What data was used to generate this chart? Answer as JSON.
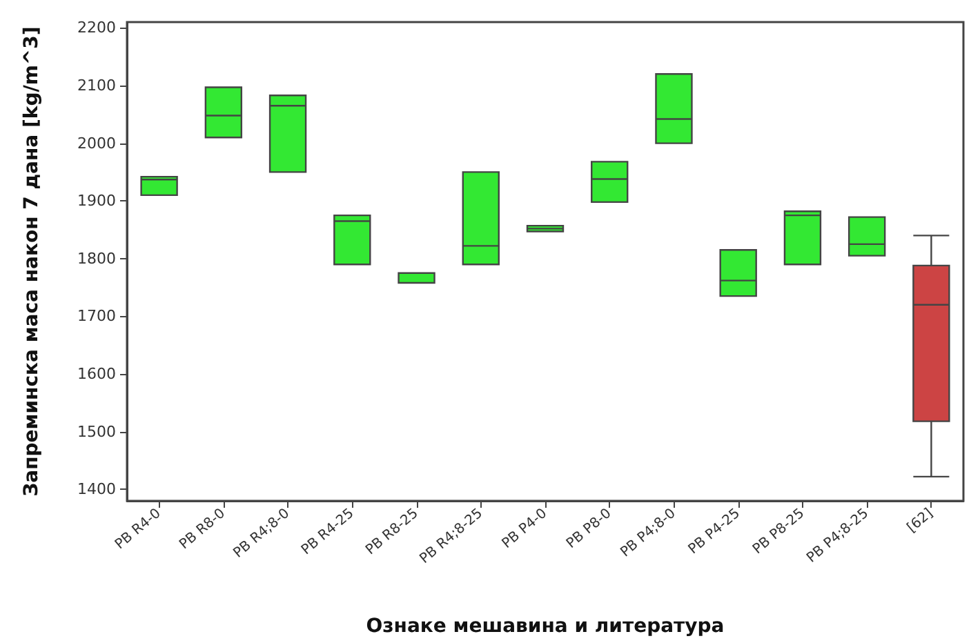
{
  "chart_data": {
    "type": "box",
    "xlabel": "Ознаке мешавина и литература",
    "ylabel": "Запреминска маса након 7 дана [kg/m^3]",
    "categories": [
      "PB R4-0",
      "PB R8-0",
      "PB R4;8-0",
      "PB R4-25",
      "PB R8-25",
      "PB R4;8-25",
      "PB P4-0",
      "PB P8-0",
      "PB P4;8-0",
      "PB P4-25",
      "PB P8-25",
      "PB P4;8-25",
      "[62]"
    ],
    "boxes": [
      {
        "low": 1910,
        "q1": 1910,
        "median": 1937,
        "q3": 1942,
        "high": 1942
      },
      {
        "low": 2010,
        "q1": 2010,
        "median": 2048,
        "q3": 2097,
        "high": 2097
      },
      {
        "low": 1950,
        "q1": 1950,
        "median": 2065,
        "q3": 2083,
        "high": 2083
      },
      {
        "low": 1790,
        "q1": 1790,
        "median": 1865,
        "q3": 1875,
        "high": 1875
      },
      {
        "low": 1758,
        "q1": 1758,
        "median": 1758,
        "q3": 1775,
        "high": 1775
      },
      {
        "low": 1790,
        "q1": 1790,
        "median": 1822,
        "q3": 1950,
        "high": 1950
      },
      {
        "low": 1847,
        "q1": 1847,
        "median": 1852,
        "q3": 1857,
        "high": 1857
      },
      {
        "low": 1898,
        "q1": 1898,
        "median": 1938,
        "q3": 1968,
        "high": 1968
      },
      {
        "low": 2000,
        "q1": 2000,
        "median": 2042,
        "q3": 2120,
        "high": 2120
      },
      {
        "low": 1735,
        "q1": 1735,
        "median": 1762,
        "q3": 1815,
        "high": 1815
      },
      {
        "low": 1790,
        "q1": 1790,
        "median": 1875,
        "q3": 1882,
        "high": 1882
      },
      {
        "low": 1805,
        "q1": 1805,
        "median": 1825,
        "q3": 1872,
        "high": 1872
      },
      {
        "low": 1422,
        "q1": 1518,
        "median": 1720,
        "q3": 1788,
        "high": 1840
      }
    ],
    "colors": [
      "#33e833",
      "#33e833",
      "#33e833",
      "#33e833",
      "#33e833",
      "#33e833",
      "#33e833",
      "#33e833",
      "#33e833",
      "#33e833",
      "#33e833",
      "#33e833",
      "#cc4444"
    ],
    "ylim": [
      1380,
      2210
    ],
    "yticks": [
      1400,
      1500,
      1600,
      1700,
      1800,
      1900,
      2000,
      2100,
      2200
    ],
    "grid": false
  }
}
